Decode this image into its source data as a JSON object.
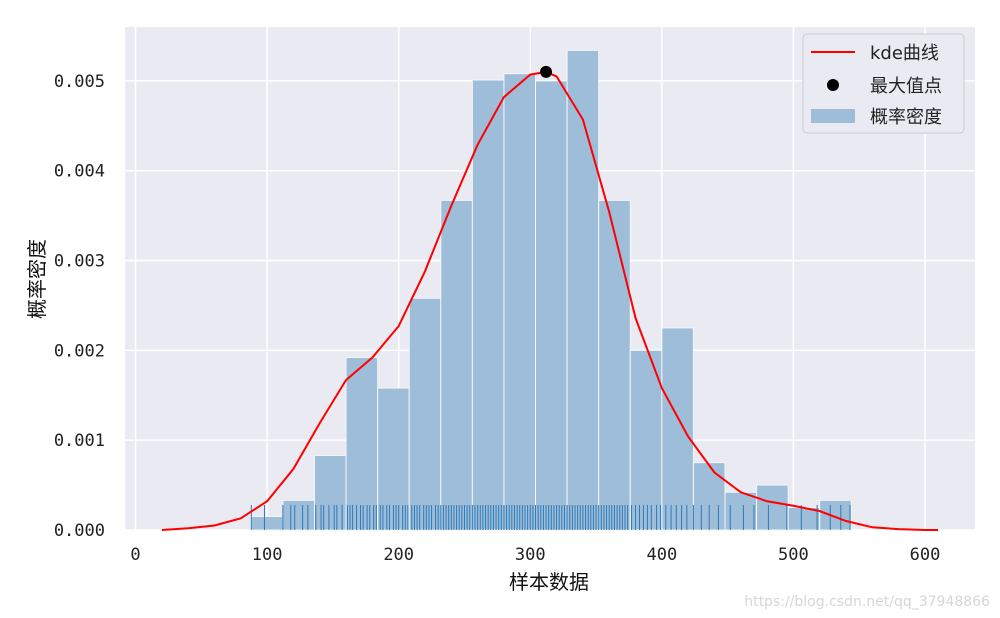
{
  "chart_data": {
    "type": "bar",
    "xlabel": "样本数据",
    "ylabel": "概率密度",
    "xlim": [
      -8,
      638
    ],
    "ylim": [
      0,
      0.0056
    ],
    "xticks": [
      0,
      100,
      200,
      300,
      400,
      500,
      600
    ],
    "xtick_labels": [
      "0",
      "100",
      "200",
      "300",
      "400",
      "500",
      "600"
    ],
    "yticks": [
      0,
      0.001,
      0.002,
      0.003,
      0.004,
      0.005
    ],
    "ytick_labels": [
      "0.000",
      "0.001",
      "0.002",
      "0.003",
      "0.004",
      "0.005"
    ],
    "grid": true,
    "background": "#eaeaf2",
    "legend": {
      "position": "top-right",
      "entries": [
        {
          "label": "kde曲线",
          "kind": "line",
          "color": "#ff0000"
        },
        {
          "label": "最大值点",
          "kind": "point",
          "color": "#000000"
        },
        {
          "label": "概率密度",
          "kind": "patch",
          "color": "#9dbdd9"
        }
      ]
    },
    "histogram": {
      "name": "概率密度",
      "color": "#9dbdd9",
      "edges": [
        88,
        112,
        136,
        160,
        184,
        208,
        232,
        256,
        280,
        304,
        328,
        352,
        376,
        400,
        424,
        448,
        472,
        496,
        520,
        544
      ],
      "values": [
        0.00015,
        0.00033,
        0.00083,
        0.00192,
        0.00158,
        0.00258,
        0.00367,
        0.00501,
        0.00508,
        0.005,
        0.00534,
        0.00367,
        0.002,
        0.00225,
        0.00075,
        0.00042,
        0.0005,
        0.00025,
        0.00033
      ]
    },
    "kde": {
      "name": "kde曲线",
      "color": "#ff0000",
      "x": [
        20,
        40,
        60,
        80,
        100,
        120,
        140,
        160,
        180,
        200,
        220,
        240,
        260,
        280,
        300,
        312,
        320,
        340,
        360,
        380,
        400,
        420,
        440,
        460,
        480,
        500,
        520,
        540,
        560,
        580,
        600,
        610
      ],
      "y": [
        0.0,
        2e-05,
        5e-05,
        0.00013,
        0.00032,
        0.00068,
        0.00119,
        0.00167,
        0.00192,
        0.00227,
        0.00288,
        0.00361,
        0.00429,
        0.00482,
        0.00507,
        0.0051,
        0.00505,
        0.00457,
        0.00354,
        0.00236,
        0.00158,
        0.00104,
        0.00064,
        0.00042,
        0.00032,
        0.00027,
        0.00021,
        0.0001,
        3e-05,
        1e-05,
        0.0,
        0.0
      ]
    },
    "max_point": {
      "name": "最大值点",
      "x": 312,
      "y": 0.0051,
      "color": "#000000"
    },
    "rug": {
      "color": "#2f7ab8",
      "x": [
        88,
        98,
        112,
        118,
        121,
        127,
        131,
        137,
        141,
        143,
        147,
        151,
        153,
        157,
        161,
        163,
        165,
        168,
        171,
        173,
        176,
        178,
        181,
        183,
        186,
        188,
        191,
        193,
        196,
        198,
        200,
        203,
        205,
        207,
        210,
        212,
        214,
        216,
        219,
        221,
        223,
        225,
        228,
        230,
        232,
        234,
        236,
        238,
        240,
        242,
        244,
        246,
        248,
        250,
        252,
        254,
        256,
        258,
        260,
        262,
        264,
        266,
        268,
        270,
        272,
        274,
        276,
        278,
        280,
        282,
        284,
        286,
        288,
        290,
        292,
        294,
        296,
        298,
        300,
        302,
        304,
        306,
        308,
        310,
        312,
        314,
        316,
        318,
        320,
        322,
        324,
        326,
        328,
        330,
        332,
        334,
        336,
        338,
        340,
        342,
        344,
        346,
        348,
        350,
        352,
        354,
        356,
        358,
        360,
        362,
        364,
        366,
        368,
        370,
        372,
        374,
        377,
        380,
        383,
        386,
        389,
        392,
        396,
        399,
        403,
        407,
        411,
        415,
        419,
        424,
        430,
        436,
        443,
        452,
        462,
        470,
        481,
        495,
        506,
        518,
        528,
        536,
        543
      ]
    }
  },
  "watermark": "https://blog.csdn.net/qq_37948866"
}
